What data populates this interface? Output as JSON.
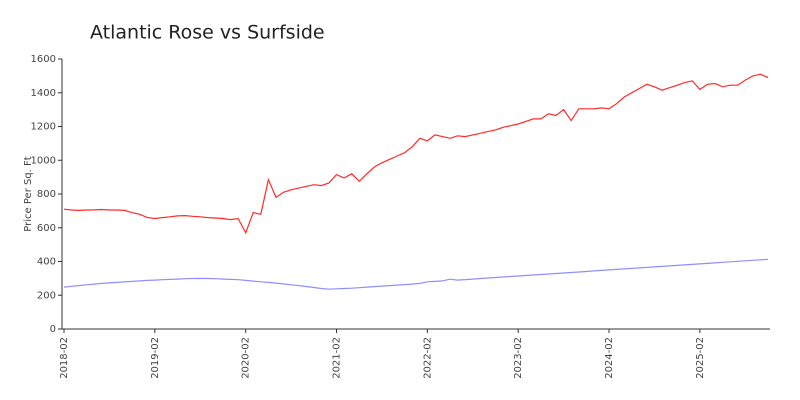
{
  "chart_data": {
    "type": "line",
    "title": "Atlantic Rose vs Surfside",
    "y_label": "Price Per Sq. Ft",
    "x": [
      "2018-02",
      "2018-03",
      "2018-04",
      "2018-05",
      "2018-06",
      "2018-07",
      "2018-08",
      "2018-09",
      "2018-10",
      "2018-11",
      "2018-12",
      "2019-01",
      "2019-02",
      "2019-03",
      "2019-04",
      "2019-05",
      "2019-06",
      "2019-07",
      "2019-08",
      "2019-09",
      "2019-10",
      "2019-11",
      "2019-12",
      "2020-01",
      "2020-02",
      "2020-03",
      "2020-04",
      "2020-05",
      "2020-06",
      "2020-07",
      "2020-08",
      "2020-09",
      "2020-10",
      "2020-11",
      "2020-12",
      "2021-01",
      "2021-02",
      "2021-03",
      "2021-04",
      "2021-05",
      "2021-06",
      "2021-07",
      "2021-08",
      "2021-09",
      "2021-10",
      "2021-11",
      "2021-12",
      "2022-01",
      "2022-02",
      "2022-03",
      "2022-04",
      "2022-05",
      "2022-06",
      "2022-07",
      "2022-08",
      "2022-09",
      "2022-10",
      "2022-11",
      "2022-12",
      "2023-01",
      "2023-02",
      "2023-03",
      "2023-04",
      "2023-05",
      "2023-06",
      "2023-07",
      "2023-08",
      "2023-09",
      "2023-10",
      "2023-11",
      "2023-12",
      "2024-01",
      "2024-02",
      "2024-03",
      "2024-04",
      "2024-05",
      "2024-06",
      "2024-07",
      "2024-08",
      "2024-09",
      "2024-10",
      "2024-11",
      "2024-12",
      "2025-01",
      "2025-02",
      "2025-03",
      "2025-04",
      "2025-05",
      "2025-06",
      "2025-07",
      "2025-08",
      "2025-09",
      "2025-10",
      "2025-11"
    ],
    "series": [
      {
        "color": "#ff2a2a",
        "values": [
          710,
          705,
          703,
          705,
          706,
          708,
          705,
          705,
          703,
          690,
          680,
          660,
          655,
          660,
          665,
          670,
          672,
          668,
          665,
          660,
          658,
          655,
          648,
          655,
          570,
          690,
          680,
          885,
          780,
          810,
          825,
          835,
          845,
          855,
          850,
          865,
          915,
          895,
          920,
          875,
          920,
          960,
          985,
          1005,
          1025,
          1045,
          1080,
          1130,
          1115,
          1150,
          1140,
          1130,
          1145,
          1140,
          1150,
          1160,
          1170,
          1180,
          1195,
          1205,
          1215,
          1230,
          1245,
          1245,
          1275,
          1265,
          1300,
          1235,
          1305,
          1305,
          1305,
          1310,
          1305,
          1335,
          1375,
          1400,
          1425,
          1450,
          1435,
          1415,
          1430,
          1445,
          1460,
          1470,
          1420,
          1450,
          1455,
          1435,
          1445,
          1445,
          1475,
          1500,
          1510,
          1490
        ]
      },
      {
        "color": "#8f8fff",
        "values": [
          248,
          253,
          258,
          262,
          266,
          270,
          273,
          276,
          279,
          282,
          285,
          288,
          290,
          292,
          294,
          296,
          298,
          299,
          300,
          299,
          298,
          296,
          294,
          292,
          288,
          284,
          280,
          276,
          272,
          267,
          262,
          257,
          252,
          246,
          240,
          236,
          238,
          240,
          242,
          245,
          248,
          251,
          254,
          257,
          260,
          263,
          266,
          270,
          280,
          282,
          285,
          295,
          290,
          293,
          296,
          299,
          302,
          305,
          308,
          311,
          314,
          317,
          320,
          323,
          326,
          329,
          332,
          335,
          338,
          341,
          344,
          347,
          350,
          353,
          356,
          359,
          362,
          365,
          368,
          371,
          374,
          377,
          380,
          383,
          386,
          389,
          392,
          395,
          398,
          401,
          404,
          407,
          410,
          413
        ]
      }
    ],
    "ylim": [
      0,
      1600
    ],
    "yticks": [
      0,
      200,
      400,
      600,
      800,
      1000,
      1200,
      1400,
      1600
    ],
    "xticks": [
      "2018-02",
      "2019-02",
      "2020-02",
      "2021-02",
      "2022-02",
      "2023-02",
      "2024-02",
      "2025-02"
    ]
  }
}
